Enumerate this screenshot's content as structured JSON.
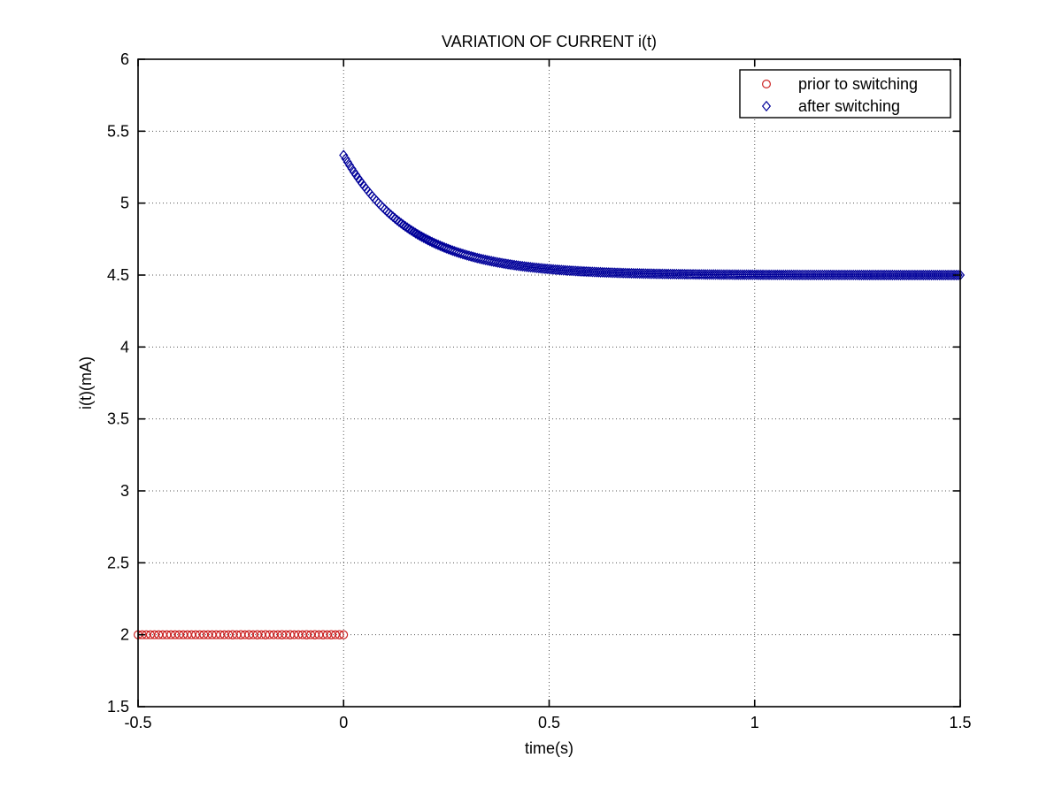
{
  "window": {
    "background": "#ffffff"
  },
  "chart_data": {
    "type": "scatter",
    "title": "VARIATION OF CURRENT i(t)",
    "xlabel": "time(s)",
    "ylabel": "i(t)(mA)",
    "xlim": [
      -0.5,
      1.5
    ],
    "ylim": [
      1.5,
      6
    ],
    "xticks": [
      "-0.5",
      "0",
      "0.5",
      "1",
      "1.5"
    ],
    "xtick_values": [
      -0.5,
      0,
      0.5,
      1,
      1.5
    ],
    "yticks": [
      "1.5",
      "2",
      "2.5",
      "3",
      "3.5",
      "4",
      "4.5",
      "5",
      "5.5",
      "6"
    ],
    "ytick_values": [
      1.5,
      2,
      2.5,
      3,
      3.5,
      4,
      4.5,
      5,
      5.5,
      6
    ],
    "grid": {
      "on": true,
      "style": "dotted",
      "color": "#555555"
    },
    "axes_color": "#000000",
    "background_color": "#ffffff",
    "legend": {
      "position": "top-right",
      "border_color": "#000000",
      "background": "#ffffff",
      "entries": [
        {
          "label": "prior to switching",
          "marker": "circle",
          "color": "#cc2222"
        },
        {
          "label": "after switching",
          "marker": "diamond",
          "color": "#000099"
        }
      ]
    },
    "series": [
      {
        "name": "prior to switching",
        "marker": "circle",
        "color": "#cc2222",
        "model": "constant",
        "y": 2,
        "t_start": -0.5,
        "t_end": 0,
        "n_points": 51
      },
      {
        "name": "after switching",
        "marker": "diamond",
        "color": "#000099",
        "model": "exponential_decay",
        "y_start": 5.3333,
        "y_inf": 4.5,
        "tau": 0.1667,
        "t_start": 0,
        "t_end": 1.5,
        "n_points": 301
      }
    ]
  }
}
